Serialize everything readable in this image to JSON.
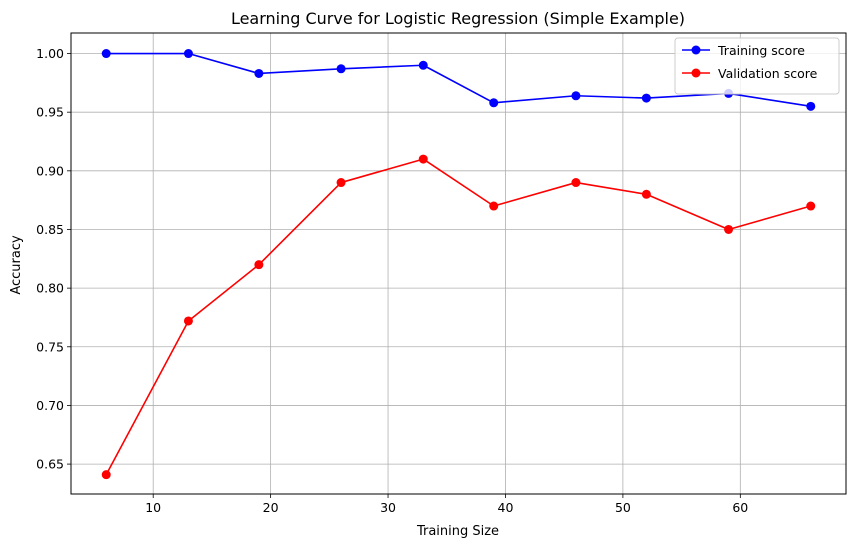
{
  "chart_data": {
    "type": "line",
    "title": "Learning Curve for Logistic Regression (Simple Example)",
    "xlabel": "Training Size",
    "ylabel": "Accuracy",
    "xlim": [
      3.0,
      69.0
    ],
    "ylim": [
      0.6245,
      1.0175
    ],
    "xticks": [
      10,
      20,
      30,
      40,
      50,
      60
    ],
    "xtick_labels": [
      "10",
      "20",
      "30",
      "40",
      "50",
      "60"
    ],
    "yticks": [
      0.65,
      0.7,
      0.75,
      0.8,
      0.85,
      0.9,
      0.95,
      1.0
    ],
    "ytick_labels": [
      "0.65",
      "0.70",
      "0.75",
      "0.80",
      "0.85",
      "0.90",
      "0.95",
      "1.00"
    ],
    "grid": true,
    "legend_position": "upper right",
    "x": [
      6,
      13,
      19,
      26,
      33,
      39,
      46,
      52,
      59,
      66
    ],
    "series": [
      {
        "name": "Training score",
        "color": "#0000ff",
        "marker": "circle",
        "values": [
          1.0,
          1.0,
          0.983,
          0.987,
          0.99,
          0.958,
          0.964,
          0.962,
          0.966,
          0.955
        ]
      },
      {
        "name": "Validation score",
        "color": "#ff0000",
        "marker": "circle",
        "values": [
          0.641,
          0.772,
          0.82,
          0.89,
          0.91,
          0.87,
          0.89,
          0.88,
          0.85,
          0.87
        ]
      }
    ]
  }
}
